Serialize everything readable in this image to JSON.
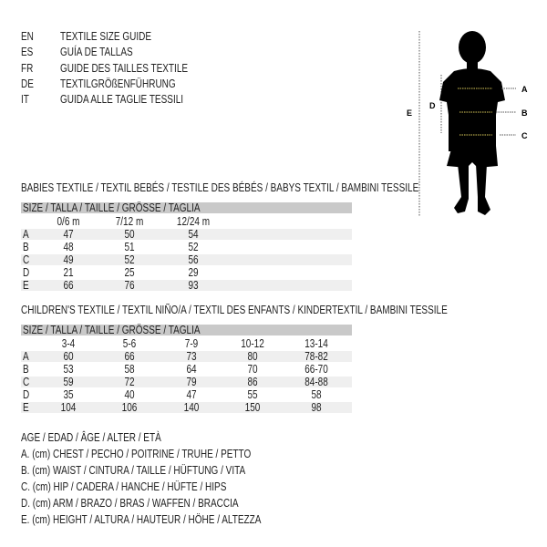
{
  "title_lines": [
    {
      "code": "EN",
      "text": "TEXTILE SIZE GUIDE"
    },
    {
      "code": "ES",
      "text": "GUÍA DE TALLAS"
    },
    {
      "code": "FR",
      "text": "GUIDE DES TAILLES TEXTILE"
    },
    {
      "code": "DE",
      "text": "TEXTILGRÖßENFÜHRUNG"
    },
    {
      "code": "IT",
      "text": "GUIDA ALLE TAGLIE TESSILI"
    }
  ],
  "figure": {
    "labels": {
      "a": "A",
      "b": "B",
      "c": "C",
      "d": "D",
      "e": "E"
    },
    "measure_line_color": "#d8c85a"
  },
  "babies": {
    "heading": "BABIES TEXTILE / TEXTIL BEBÉS / TESTILE DES BÉBÉS / BABYS TEXTIL / BAMBINI TESSILE",
    "size_header": "SIZE / TALLA / TAILLE / GRÖSSE / TAGLIA",
    "columns": [
      "0/6 m",
      "7/12 m",
      "12/24 m"
    ],
    "rows": [
      {
        "label": "A",
        "values": [
          "47",
          "50",
          "54"
        ]
      },
      {
        "label": "B",
        "values": [
          "48",
          "51",
          "52"
        ]
      },
      {
        "label": "C",
        "values": [
          "49",
          "52",
          "56"
        ]
      },
      {
        "label": "D",
        "values": [
          "21",
          "25",
          "29"
        ]
      },
      {
        "label": "E",
        "values": [
          "66",
          "76",
          "93"
        ]
      }
    ]
  },
  "children": {
    "heading": "CHILDREN'S TEXTILE / TEXTIL NIÑO/A / TEXTIL DES ENFANTS / KINDERTEXTIL / BAMBINI TESSILE",
    "size_header": "SIZE / TALLA / TAILLE / GRÖSSE / TAGLIA",
    "columns": [
      "3-4",
      "5-6",
      "7-9",
      "10-12",
      "13-14"
    ],
    "rows": [
      {
        "label": "A",
        "values": [
          "60",
          "66",
          "73",
          "80",
          "78-82"
        ]
      },
      {
        "label": "B",
        "values": [
          "53",
          "58",
          "64",
          "70",
          "66-70"
        ]
      },
      {
        "label": "C",
        "values": [
          "59",
          "72",
          "79",
          "86",
          "84-88"
        ]
      },
      {
        "label": "D",
        "values": [
          "35",
          "40",
          "47",
          "55",
          "58"
        ]
      },
      {
        "label": "E",
        "values": [
          "104",
          "106",
          "140",
          "150",
          "98"
        ]
      }
    ]
  },
  "legend": [
    "AGE / EDAD / ÂGE / ALTER / ETÀ",
    "A. (cm) CHEST / PECHO / POITRINE / TRUHE / PETTO",
    "B. (cm) WAIST / CINTURA / TAILLE / HÜFTUNG / VITA",
    "C. (cm) HIP / CADERA / HANCHE / HÜFTE / HIPS",
    "D. (cm) ARM / BRAZO / BRAS / WAFFEN / BRACCIA",
    "E. (cm) HEIGHT / ALTURA / HAUTEUR / HÖHE / ALTEZZA"
  ]
}
